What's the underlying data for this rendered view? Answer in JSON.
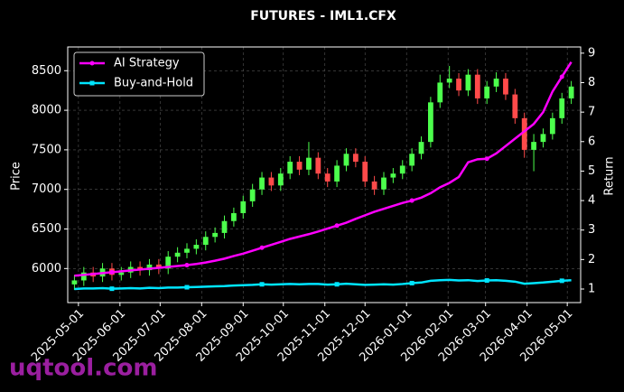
{
  "chart_data": {
    "type": "candlestick",
    "title": "FUTURES - IML1.CFX",
    "ylabel": "Price",
    "y2label": "Return",
    "watermark": "uqtool.com",
    "grid": true,
    "legend": "upper left",
    "up_color": "#4cff4c",
    "down_color": "#ff4a4a",
    "xlim": [
      "2025-04-23",
      "2026-05-11"
    ],
    "xticks": [
      "2025-05-01",
      "2025-06-01",
      "2025-07-01",
      "2025-08-01",
      "2025-09-01",
      "2025-10-01",
      "2025-11-01",
      "2025-12-01",
      "2026-01-01",
      "2026-02-01",
      "2026-03-01",
      "2026-04-01",
      "2026-05-01"
    ],
    "ylim": [
      5570,
      8800
    ],
    "yticks": [
      6000,
      6500,
      7000,
      7500,
      8000,
      8500
    ],
    "y2lim": [
      0.54,
      9.21
    ],
    "y2ticks": [
      1,
      2,
      3,
      4,
      5,
      6,
      7,
      8,
      9
    ],
    "x": [
      "2025-04-28",
      "2025-05-05",
      "2025-05-12",
      "2025-05-19",
      "2025-05-26",
      "2025-06-02",
      "2025-06-09",
      "2025-06-16",
      "2025-06-23",
      "2025-06-30",
      "2025-07-07",
      "2025-07-14",
      "2025-07-21",
      "2025-07-28",
      "2025-08-04",
      "2025-08-11",
      "2025-08-18",
      "2025-08-25",
      "2025-09-01",
      "2025-09-08",
      "2025-09-15",
      "2025-09-22",
      "2025-09-29",
      "2025-10-06",
      "2025-10-13",
      "2025-10-20",
      "2025-10-27",
      "2025-11-03",
      "2025-11-10",
      "2025-11-17",
      "2025-11-24",
      "2025-12-01",
      "2025-12-08",
      "2025-12-15",
      "2025-12-22",
      "2025-12-29",
      "2026-01-05",
      "2026-01-12",
      "2026-01-19",
      "2026-01-26",
      "2026-02-02",
      "2026-02-09",
      "2026-02-16",
      "2026-02-23",
      "2026-03-02",
      "2026-03-09",
      "2026-03-16",
      "2026-03-23",
      "2026-03-30",
      "2026-04-06",
      "2026-04-13",
      "2026-04-20",
      "2026-04-27",
      "2026-05-04"
    ],
    "open": [
      5800,
      5850,
      5950,
      5900,
      6000,
      5920,
      5950,
      6020,
      5980,
      6050,
      6000,
      6150,
      6200,
      6250,
      6300,
      6400,
      6450,
      6600,
      6700,
      6850,
      7000,
      7150,
      7050,
      7200,
      7350,
      7250,
      7400,
      7200,
      7100,
      7300,
      7450,
      7350,
      7100,
      7000,
      7150,
      7200,
      7300,
      7450,
      7600,
      8100,
      8350,
      8400,
      8250,
      8450,
      8150,
      8300,
      8400,
      8200,
      7900,
      7500,
      7600,
      7700,
      7900,
      8150
    ],
    "high": [
      5920,
      6020,
      6020,
      6070,
      6070,
      6020,
      6090,
      6090,
      6120,
      6120,
      6220,
      6270,
      6320,
      6370,
      6470,
      6520,
      6670,
      6770,
      6920,
      7070,
      7220,
      7220,
      7270,
      7420,
      7420,
      7600,
      7470,
      7270,
      7370,
      7520,
      7520,
      7420,
      7170,
      7220,
      7270,
      7370,
      7520,
      7670,
      8170,
      8450,
      8560,
      8470,
      8520,
      8520,
      8370,
      8480,
      8470,
      8270,
      7970,
      7700,
      7770,
      7970,
      8220,
      8370
    ],
    "low": [
      5730,
      5780,
      5830,
      5830,
      5850,
      5850,
      5880,
      5910,
      5910,
      5930,
      5930,
      6080,
      6130,
      6180,
      6230,
      6330,
      6380,
      6530,
      6630,
      6780,
      6930,
      6980,
      6980,
      7130,
      7180,
      7180,
      7130,
      7030,
      7030,
      7230,
      7280,
      7030,
      6930,
      6930,
      7080,
      7130,
      7230,
      7380,
      7530,
      8030,
      8280,
      8180,
      8180,
      8080,
      8080,
      8230,
      8130,
      7830,
      7400,
      7230,
      7530,
      7630,
      7830,
      8080
    ],
    "close": [
      5850,
      5950,
      5900,
      6000,
      5920,
      5950,
      6020,
      5980,
      6050,
      6000,
      6150,
      6200,
      6250,
      6300,
      6400,
      6450,
      6600,
      6700,
      6850,
      7000,
      7150,
      7050,
      7200,
      7350,
      7250,
      7400,
      7200,
      7100,
      7300,
      7450,
      7350,
      7100,
      7000,
      7150,
      7200,
      7300,
      7450,
      7600,
      8100,
      8350,
      8400,
      8250,
      8450,
      8150,
      8300,
      8400,
      8200,
      7900,
      7500,
      7600,
      7700,
      7900,
      8150,
      8300
    ],
    "series": [
      {
        "name": "AI Strategy",
        "color": "#ff00ff",
        "marker": "circle",
        "axis": "y2",
        "values": [
          1.45,
          1.48,
          1.51,
          1.54,
          1.57,
          1.6,
          1.63,
          1.66,
          1.69,
          1.72,
          1.75,
          1.78,
          1.81,
          1.85,
          1.9,
          1.96,
          2.03,
          2.12,
          2.2,
          2.3,
          2.4,
          2.5,
          2.6,
          2.7,
          2.78,
          2.86,
          2.95,
          3.05,
          3.15,
          3.25,
          3.38,
          3.5,
          3.62,
          3.72,
          3.82,
          3.92,
          4.0,
          4.1,
          4.25,
          4.45,
          4.6,
          4.8,
          5.3,
          5.4,
          5.42,
          5.6,
          5.85,
          6.1,
          6.35,
          6.6,
          7.0,
          7.7,
          8.2,
          8.7
        ]
      },
      {
        "name": "Buy-and-Hold",
        "color": "#00e5ff",
        "marker": "square",
        "axis": "y2",
        "values": [
          1.0,
          1.02,
          1.02,
          1.03,
          1.01,
          1.02,
          1.03,
          1.02,
          1.04,
          1.03,
          1.05,
          1.05,
          1.06,
          1.07,
          1.08,
          1.09,
          1.1,
          1.12,
          1.13,
          1.14,
          1.16,
          1.15,
          1.16,
          1.17,
          1.16,
          1.17,
          1.17,
          1.15,
          1.16,
          1.18,
          1.16,
          1.14,
          1.15,
          1.16,
          1.15,
          1.17,
          1.2,
          1.22,
          1.28,
          1.3,
          1.31,
          1.29,
          1.3,
          1.27,
          1.29,
          1.3,
          1.28,
          1.25,
          1.18,
          1.2,
          1.22,
          1.25,
          1.28,
          1.3
        ]
      }
    ]
  }
}
